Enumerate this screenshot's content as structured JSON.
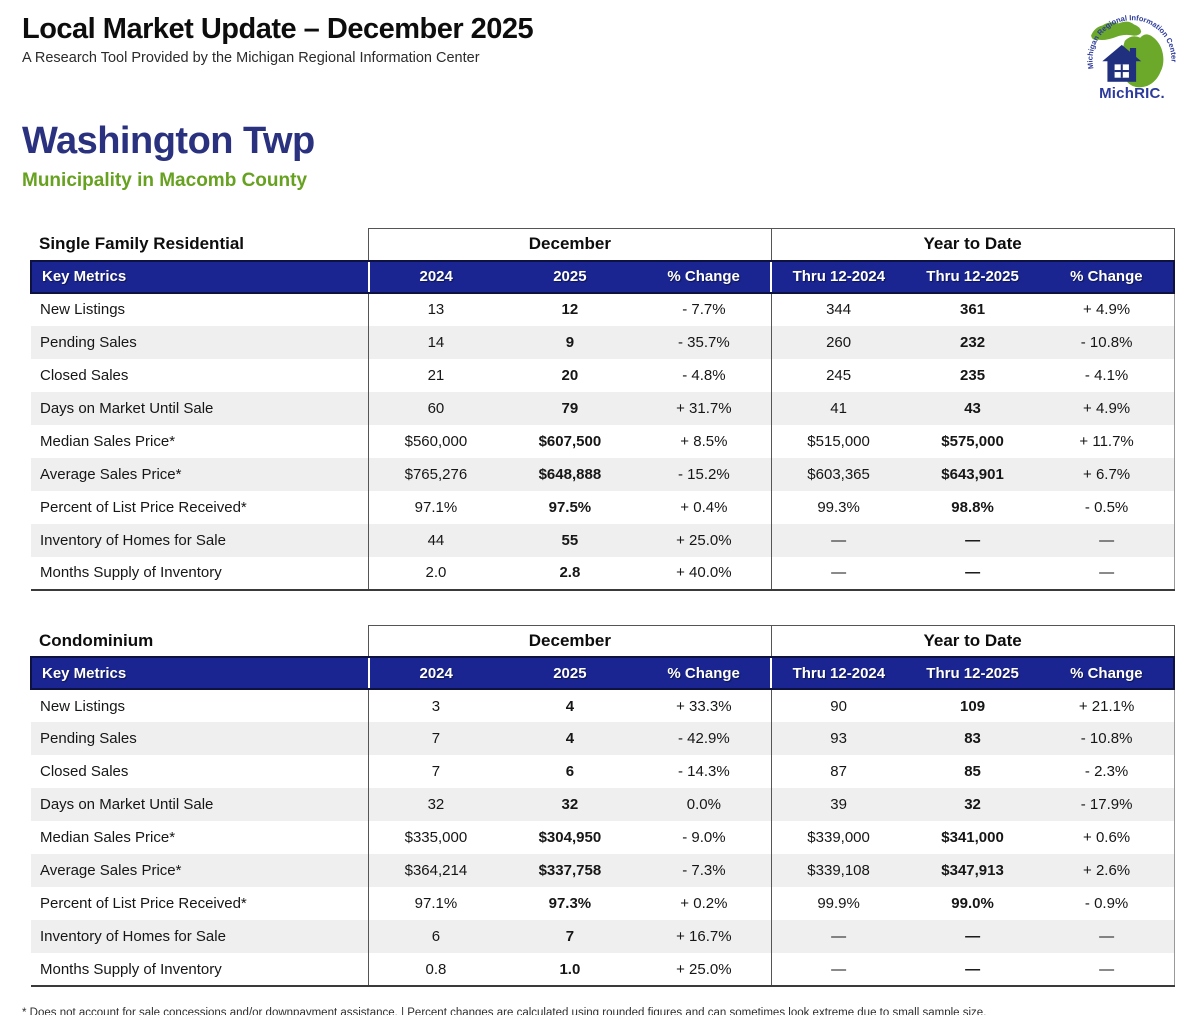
{
  "page": {
    "title": "Local Market Update – December 2025",
    "subtitle": "A Research Tool Provided by the Michigan Regional Information Center",
    "footnote": "* Does not account for sale concessions and/or downpayment assistance. | Percent changes are calculated using rounded figures and can sometimes look extreme due to small sample size."
  },
  "logo": {
    "arc_text": "Michigan Regional Information Center",
    "name": "MichRIC."
  },
  "location": {
    "name": "Washington Twp",
    "descriptor": "Municipality in Macomb County"
  },
  "colors": {
    "header_blue": "#1a2591",
    "location_navy": "#2a317f",
    "location_green": "#67a120",
    "alt_row_gray": "#efefef"
  },
  "tables": [
    {
      "title": "Single Family Residential",
      "group_december": "December",
      "group_ytd": "Year to Date",
      "columns": [
        "Key Metrics",
        "2024",
        "2025",
        "% Change",
        "Thru 12-2024",
        "Thru 12-2025",
        "% Change"
      ],
      "rows": [
        [
          "New Listings",
          "13",
          "12",
          "- 7.7%",
          "344",
          "361",
          "+ 4.9%"
        ],
        [
          "Pending Sales",
          "14",
          "9",
          "- 35.7%",
          "260",
          "232",
          "- 10.8%"
        ],
        [
          "Closed Sales",
          "21",
          "20",
          "- 4.8%",
          "245",
          "235",
          "- 4.1%"
        ],
        [
          "Days on Market Until Sale",
          "60",
          "79",
          "+ 31.7%",
          "41",
          "43",
          "+ 4.9%"
        ],
        [
          "Median Sales Price*",
          "$560,000",
          "$607,500",
          "+ 8.5%",
          "$515,000",
          "$575,000",
          "+ 11.7%"
        ],
        [
          "Average Sales Price*",
          "$765,276",
          "$648,888",
          "- 15.2%",
          "$603,365",
          "$643,901",
          "+ 6.7%"
        ],
        [
          "Percent of List Price Received*",
          "97.1%",
          "97.5%",
          "+ 0.4%",
          "99.3%",
          "98.8%",
          "- 0.5%"
        ],
        [
          "Inventory of Homes for Sale",
          "44",
          "55",
          "+ 25.0%",
          "—",
          "—",
          "—"
        ],
        [
          "Months Supply of Inventory",
          "2.0",
          "2.8",
          "+ 40.0%",
          "—",
          "—",
          "—"
        ]
      ]
    },
    {
      "title": "Condominium",
      "group_december": "December",
      "group_ytd": "Year to Date",
      "columns": [
        "Key Metrics",
        "2024",
        "2025",
        "% Change",
        "Thru 12-2024",
        "Thru 12-2025",
        "% Change"
      ],
      "rows": [
        [
          "New Listings",
          "3",
          "4",
          "+ 33.3%",
          "90",
          "109",
          "+ 21.1%"
        ],
        [
          "Pending Sales",
          "7",
          "4",
          "- 42.9%",
          "93",
          "83",
          "- 10.8%"
        ],
        [
          "Closed Sales",
          "7",
          "6",
          "- 14.3%",
          "87",
          "85",
          "- 2.3%"
        ],
        [
          "Days on Market Until Sale",
          "32",
          "32",
          "0.0%",
          "39",
          "32",
          "- 17.9%"
        ],
        [
          "Median Sales Price*",
          "$335,000",
          "$304,950",
          "- 9.0%",
          "$339,000",
          "$341,000",
          "+ 0.6%"
        ],
        [
          "Average Sales Price*",
          "$364,214",
          "$337,758",
          "- 7.3%",
          "$339,108",
          "$347,913",
          "+ 2.6%"
        ],
        [
          "Percent of List Price Received*",
          "97.1%",
          "97.3%",
          "+ 0.2%",
          "99.9%",
          "99.0%",
          "- 0.9%"
        ],
        [
          "Inventory of Homes for Sale",
          "6",
          "7",
          "+ 16.7%",
          "—",
          "—",
          "—"
        ],
        [
          "Months Supply of Inventory",
          "0.8",
          "1.0",
          "+ 25.0%",
          "—",
          "—",
          "—"
        ]
      ]
    }
  ]
}
